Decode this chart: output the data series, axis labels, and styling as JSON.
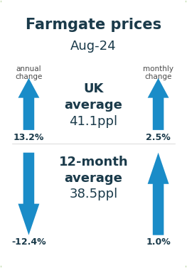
{
  "title_line1": "Farmgate prices",
  "title_line2": "Aug-24",
  "title_color": "#1a3a4a",
  "title_fontsize": 15,
  "subtitle_fontsize": 13,
  "label_annual": "annual\nchange",
  "label_monthly": "monthly\nchange",
  "label_fontsize": 7.5,
  "label_color": "#4a4a4a",
  "uk_line1": "UK",
  "uk_line2": "average",
  "uk_line3": "41.1ppl",
  "uk_fontsize_label": 13,
  "uk_fontsize_value": 13,
  "month12_line1": "12-month",
  "month12_line2": "average",
  "month12_line3": "38.5ppl",
  "month12_fontsize": 13,
  "center_text_color": "#1a3a4a",
  "arrow_color": "#1a8cc8",
  "arrow_up1_pct": "13.2%",
  "arrow_up2_pct": "2.5%",
  "arrow_down1_pct": "-12.4%",
  "arrow_up3_pct": "1.0%",
  "pct_fontsize": 9,
  "pct_color": "#1a3a4a",
  "border_color": "#6aaa3a",
  "bg_color": "#ffffff"
}
